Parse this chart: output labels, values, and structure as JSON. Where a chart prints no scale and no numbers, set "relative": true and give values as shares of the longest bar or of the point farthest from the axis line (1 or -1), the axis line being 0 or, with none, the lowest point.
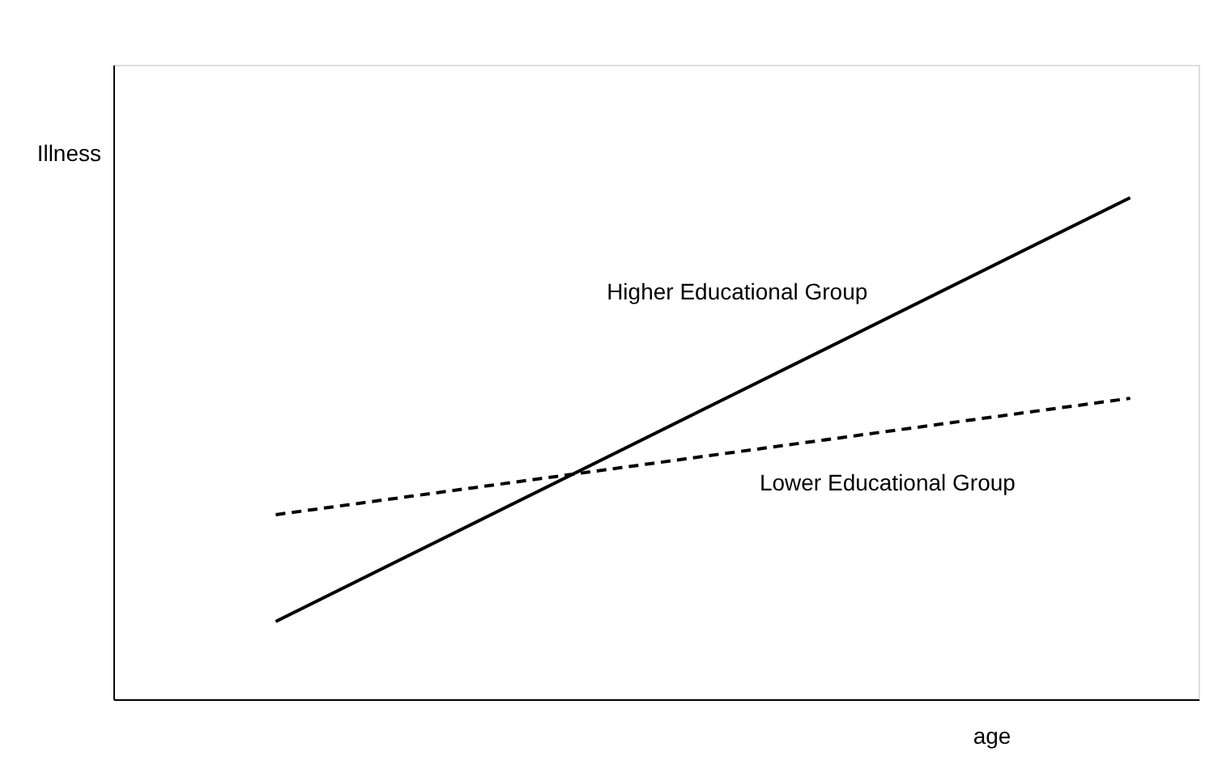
{
  "chart_data": {
    "type": "line",
    "relative": true,
    "xlabel": "age",
    "ylabel": "Illness",
    "categories": [
      null,
      null
    ],
    "tick_labels": false,
    "grid": false,
    "legend": false,
    "series": [
      {
        "name": "Higher Educational Group",
        "color": "#000000",
        "line_style": "solid",
        "values": [
          0.155,
          1
        ]
      },
      {
        "name": "Lower Educational Group",
        "color": "#000000",
        "line_style": "dashed",
        "values": [
          0.368,
          0.6
        ]
      }
    ]
  }
}
